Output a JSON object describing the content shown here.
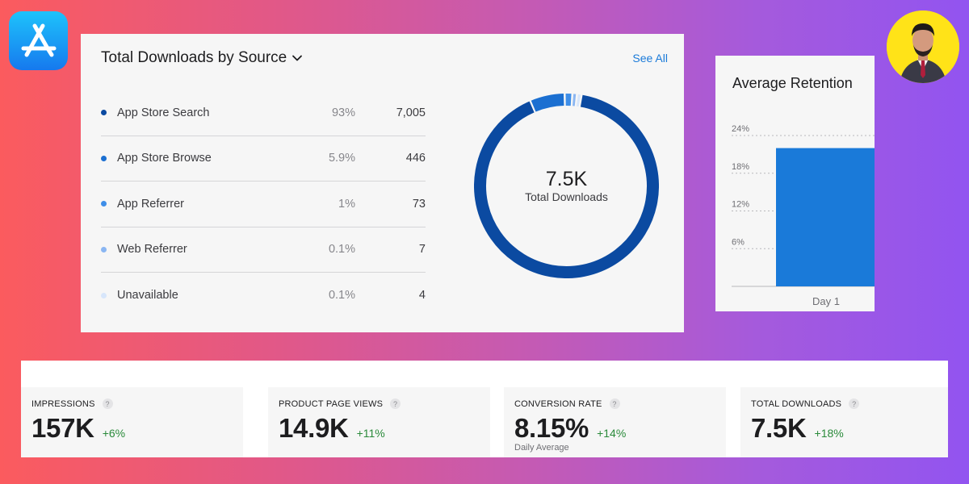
{
  "brand": {
    "logo_icon": "app-store-icon",
    "accent": "#1679ee"
  },
  "avatar": {
    "icon": "user-avatar",
    "bg": "#ffe318"
  },
  "downloads_card": {
    "title": "Total Downloads by Source",
    "see_all": "See All",
    "sources": [
      {
        "name": "App Store Search",
        "pct": "93%",
        "count": "7,005",
        "color": "#0b4aa1"
      },
      {
        "name": "App Store Browse",
        "pct": "5.9%",
        "count": "446",
        "color": "#1b6fd1"
      },
      {
        "name": "App Referrer",
        "pct": "1%",
        "count": "73",
        "color": "#3e8ee8"
      },
      {
        "name": "Web Referrer",
        "pct": "0.1%",
        "count": "7",
        "color": "#8ab6f2"
      },
      {
        "name": "Unavailable",
        "pct": "0.1%",
        "count": "4",
        "color": "#d7e6fb"
      }
    ],
    "donut": {
      "value": "7.5K",
      "label": "Total Downloads",
      "shares": [
        93,
        5.9,
        1,
        0.1,
        0.1
      ]
    }
  },
  "retention_card": {
    "title": "Average Retention",
    "chart_data": {
      "type": "bar",
      "categories": [
        "Day 1"
      ],
      "values": [
        22
      ],
      "ylim": [
        0,
        24
      ],
      "yticks": [
        "6%",
        "12%",
        "18%",
        "24%"
      ],
      "ytick_values": [
        6,
        12,
        18,
        24
      ],
      "bar_color": "#1a7ad9"
    }
  },
  "kpis": [
    {
      "label": "IMPRESSIONS",
      "value": "157K",
      "change": "+6%",
      "sub": ""
    },
    {
      "label": "PRODUCT PAGE VIEWS",
      "value": "14.9K",
      "change": "+11%",
      "sub": ""
    },
    {
      "label": "CONVERSION RATE",
      "value": "8.15%",
      "change": "+14%",
      "sub": "Daily Average"
    },
    {
      "label": "TOTAL DOWNLOADS",
      "value": "7.5K",
      "change": "+18%",
      "sub": ""
    }
  ]
}
